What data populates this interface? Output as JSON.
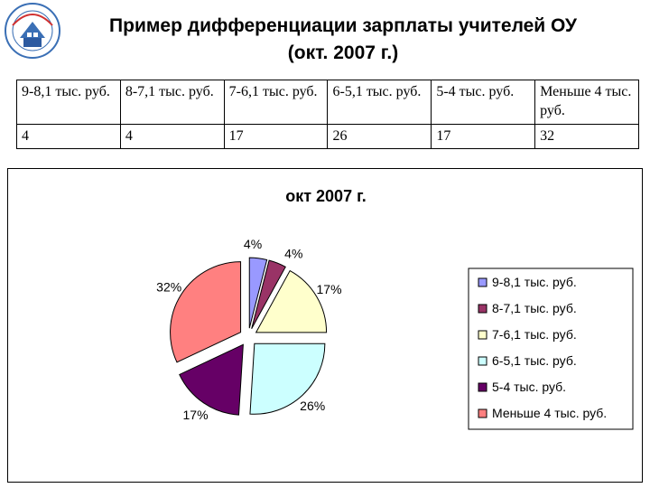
{
  "header": {
    "title_line1": "Пример дифференциации зарплаты учителей ОУ",
    "title_line2": "(окт. 2007 г.)"
  },
  "table": {
    "ranges": [
      "9-8,1 тыс. руб.",
      "8-7,1 тыс. руб.",
      "7-6,1 тыс. руб.",
      "6-5,1 тыс. руб.",
      "5-4 тыс. руб.",
      "Меньше 4 тыс. руб."
    ],
    "counts": [
      "4",
      "4",
      "17",
      "26",
      "17",
      "32"
    ]
  },
  "colors": {
    "slice": [
      "#9999ff",
      "#993366",
      "#ffffcc",
      "#ccffff",
      "#660066",
      "#ff8080"
    ]
  },
  "chart_data": {
    "type": "pie",
    "title": "окт 2007 г.",
    "categories": [
      "9-8,1 тыс. руб.",
      "8-7,1 тыс. руб.",
      "7-6,1 тыс. руб.",
      "6-5,1 тыс. руб.",
      "5-4 тыс. руб.",
      "Меньше 4 тыс. руб."
    ],
    "values": [
      4,
      4,
      17,
      26,
      17,
      32
    ],
    "data_labels": [
      "4%",
      "4%",
      "17%",
      "26%",
      "17%",
      "32%"
    ],
    "legend_position": "right",
    "exploded": true
  }
}
